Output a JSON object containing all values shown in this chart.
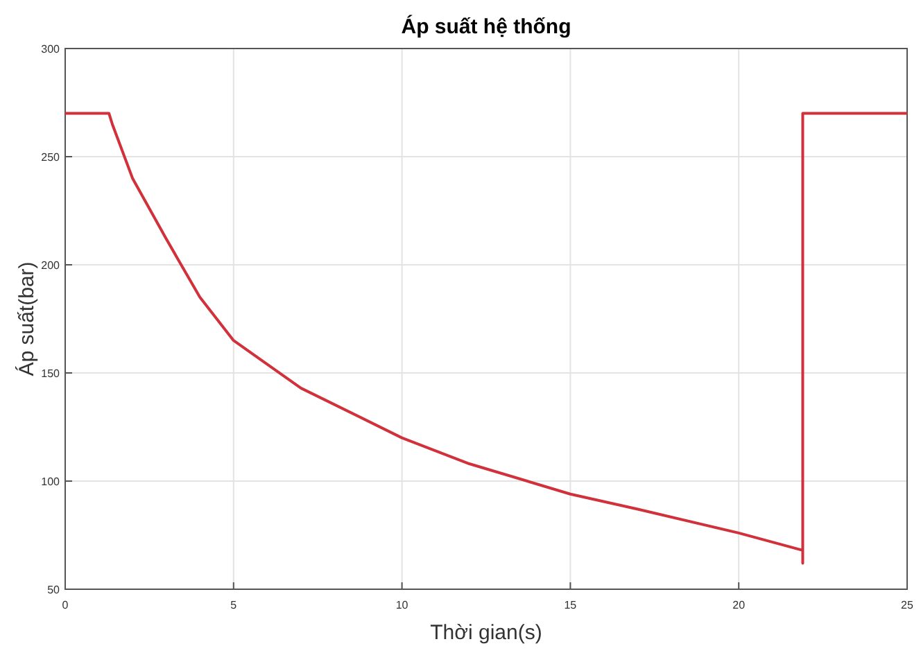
{
  "chart_data": {
    "type": "line",
    "title": "Áp suất hệ thống",
    "xlabel": "Thời gian(s)",
    "ylabel": "Áp suất(bar)",
    "series": [
      {
        "color": "#d0313b",
        "x": [
          0,
          1.3,
          1.4,
          2,
          3,
          4,
          5,
          7,
          10,
          12,
          15,
          17,
          20,
          21.9,
          21.9,
          21.9,
          25
        ],
        "values": [
          270,
          270,
          265,
          240,
          212,
          185,
          165,
          143,
          120,
          108,
          94,
          87,
          76,
          68,
          62,
          270,
          270
        ]
      }
    ],
    "xlim": [
      0,
      25
    ],
    "ylim": [
      50,
      300
    ],
    "xticks": [
      0,
      5,
      10,
      15,
      20,
      25
    ],
    "yticks": [
      50,
      100,
      150,
      200,
      250,
      300
    ],
    "grid": true,
    "line_style": "solid"
  }
}
